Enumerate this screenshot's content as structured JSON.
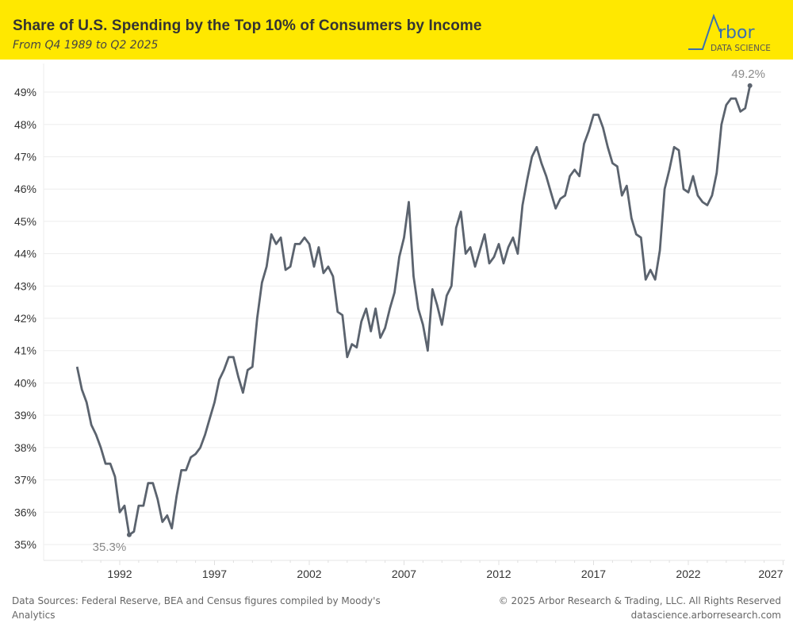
{
  "header": {
    "title": "Share of U.S. Spending by the Top 10% of Consumers by Income",
    "subtitle": "From Q4 1989 to Q2 2025",
    "logo": {
      "wordmark": "rbor",
      "initial": "A",
      "tagline": "DATA SCIENCE"
    },
    "background_color": "#FFE800"
  },
  "footer": {
    "sources": "Data Sources: Federal Reserve, BEA and Census figures compiled by Moody's Analytics",
    "copyright": "© 2025 Arbor Research & Trading, LLC. All Rights Reserved",
    "website": "datascience.arborresearch.com"
  },
  "chart_data": {
    "type": "line",
    "title": "Share of U.S. Spending by the Top 10% of Consumers by Income",
    "subtitle": "From Q4 1989 to Q2 2025",
    "xlabel": "",
    "ylabel": "",
    "line_color": "#5B636E",
    "grid": true,
    "ylim": [
      34.5,
      50
    ],
    "y_ticks": [
      35,
      36,
      37,
      38,
      39,
      40,
      41,
      42,
      43,
      44,
      45,
      46,
      47,
      48,
      49
    ],
    "y_tick_labels": [
      "35%",
      "36%",
      "37%",
      "38%",
      "39%",
      "40%",
      "41%",
      "42%",
      "43%",
      "44%",
      "45%",
      "46%",
      "47%",
      "48%",
      "49%"
    ],
    "x_ticks": [
      1992,
      1997,
      2002,
      2007,
      2012,
      2017,
      2022,
      2027
    ],
    "x_tick_labels": [
      "1992",
      "1997",
      "2002",
      "2007",
      "2012",
      "2017",
      "2022",
      "2027"
    ],
    "annotations": [
      {
        "x": "1992-Q3",
        "y": 35.3,
        "label": "35.3%",
        "position": "below"
      },
      {
        "x": "2025-Q2",
        "y": 49.2,
        "label": "49.2%",
        "position": "above"
      }
    ],
    "x": [
      "1989-Q4",
      "1990-Q1",
      "1990-Q2",
      "1990-Q3",
      "1990-Q4",
      "1991-Q1",
      "1991-Q2",
      "1991-Q3",
      "1991-Q4",
      "1992-Q1",
      "1992-Q2",
      "1992-Q3",
      "1992-Q4",
      "1993-Q1",
      "1993-Q2",
      "1993-Q3",
      "1993-Q4",
      "1994-Q1",
      "1994-Q2",
      "1994-Q3",
      "1994-Q4",
      "1995-Q1",
      "1995-Q2",
      "1995-Q3",
      "1995-Q4",
      "1996-Q1",
      "1996-Q2",
      "1996-Q3",
      "1996-Q4",
      "1997-Q1",
      "1997-Q2",
      "1997-Q3",
      "1997-Q4",
      "1998-Q1",
      "1998-Q2",
      "1998-Q3",
      "1998-Q4",
      "1999-Q1",
      "1999-Q2",
      "1999-Q3",
      "1999-Q4",
      "2000-Q1",
      "2000-Q2",
      "2000-Q3",
      "2000-Q4",
      "2001-Q1",
      "2001-Q2",
      "2001-Q3",
      "2001-Q4",
      "2002-Q1",
      "2002-Q2",
      "2002-Q3",
      "2002-Q4",
      "2003-Q1",
      "2003-Q2",
      "2003-Q3",
      "2003-Q4",
      "2004-Q1",
      "2004-Q2",
      "2004-Q3",
      "2004-Q4",
      "2005-Q1",
      "2005-Q2",
      "2005-Q3",
      "2005-Q4",
      "2006-Q1",
      "2006-Q2",
      "2006-Q3",
      "2006-Q4",
      "2007-Q1",
      "2007-Q2",
      "2007-Q3",
      "2007-Q4",
      "2008-Q1",
      "2008-Q2",
      "2008-Q3",
      "2008-Q4",
      "2009-Q1",
      "2009-Q2",
      "2009-Q3",
      "2009-Q4",
      "2010-Q1",
      "2010-Q2",
      "2010-Q3",
      "2010-Q4",
      "2011-Q1",
      "2011-Q2",
      "2011-Q3",
      "2011-Q4",
      "2012-Q1",
      "2012-Q2",
      "2012-Q3",
      "2012-Q4",
      "2013-Q1",
      "2013-Q2",
      "2013-Q3",
      "2013-Q4",
      "2014-Q1",
      "2014-Q2",
      "2014-Q3",
      "2014-Q4",
      "2015-Q1",
      "2015-Q2",
      "2015-Q3",
      "2015-Q4",
      "2016-Q1",
      "2016-Q2",
      "2016-Q3",
      "2016-Q4",
      "2017-Q1",
      "2017-Q2",
      "2017-Q3",
      "2017-Q4",
      "2018-Q1",
      "2018-Q2",
      "2018-Q3",
      "2018-Q4",
      "2019-Q1",
      "2019-Q2",
      "2019-Q3",
      "2019-Q4",
      "2020-Q1",
      "2020-Q2",
      "2020-Q3",
      "2020-Q4",
      "2021-Q1",
      "2021-Q2",
      "2021-Q3",
      "2021-Q4",
      "2022-Q1",
      "2022-Q2",
      "2022-Q3",
      "2022-Q4",
      "2023-Q1",
      "2023-Q2",
      "2023-Q3",
      "2023-Q4",
      "2024-Q1",
      "2024-Q2",
      "2024-Q3",
      "2024-Q4",
      "2025-Q1",
      "2025-Q2"
    ],
    "y": [
      40.5,
      39.8,
      39.4,
      38.7,
      38.4,
      38.0,
      37.5,
      37.5,
      37.1,
      36.0,
      36.2,
      35.3,
      35.4,
      36.2,
      36.2,
      36.9,
      36.9,
      36.4,
      35.7,
      35.9,
      35.5,
      36.5,
      37.3,
      37.3,
      37.7,
      37.8,
      38.0,
      38.4,
      38.9,
      39.4,
      40.1,
      40.4,
      40.8,
      40.8,
      40.2,
      39.7,
      40.4,
      40.5,
      42.0,
      43.1,
      43.6,
      44.6,
      44.3,
      44.5,
      43.5,
      43.6,
      44.3,
      44.3,
      44.5,
      44.3,
      43.6,
      44.2,
      43.4,
      43.6,
      43.3,
      42.2,
      42.1,
      40.8,
      41.2,
      41.1,
      41.9,
      42.3,
      41.6,
      42.3,
      41.4,
      41.7,
      42.3,
      42.8,
      43.9,
      44.5,
      45.6,
      43.3,
      42.3,
      41.8,
      41.0,
      42.9,
      42.4,
      41.8,
      42.7,
      43.0,
      44.8,
      45.3,
      44.0,
      44.2,
      43.6,
      44.1,
      44.6,
      43.7,
      43.9,
      44.3,
      43.7,
      44.2,
      44.5,
      44.0,
      45.5,
      46.3,
      47.0,
      47.3,
      46.8,
      46.4,
      45.9,
      45.4,
      45.7,
      45.8,
      46.4,
      46.6,
      46.4,
      47.4,
      47.8,
      48.3,
      48.3,
      47.9,
      47.3,
      46.8,
      46.7,
      45.8,
      46.1,
      45.1,
      44.6,
      44.5,
      43.2,
      43.5,
      43.2,
      44.1,
      46.0,
      46.6,
      47.3,
      47.2,
      46.0,
      45.9,
      46.4,
      45.8,
      45.6,
      45.5,
      45.8,
      46.5,
      48.0,
      48.6,
      48.8,
      48.8,
      48.4,
      48.5,
      49.2
    ]
  }
}
